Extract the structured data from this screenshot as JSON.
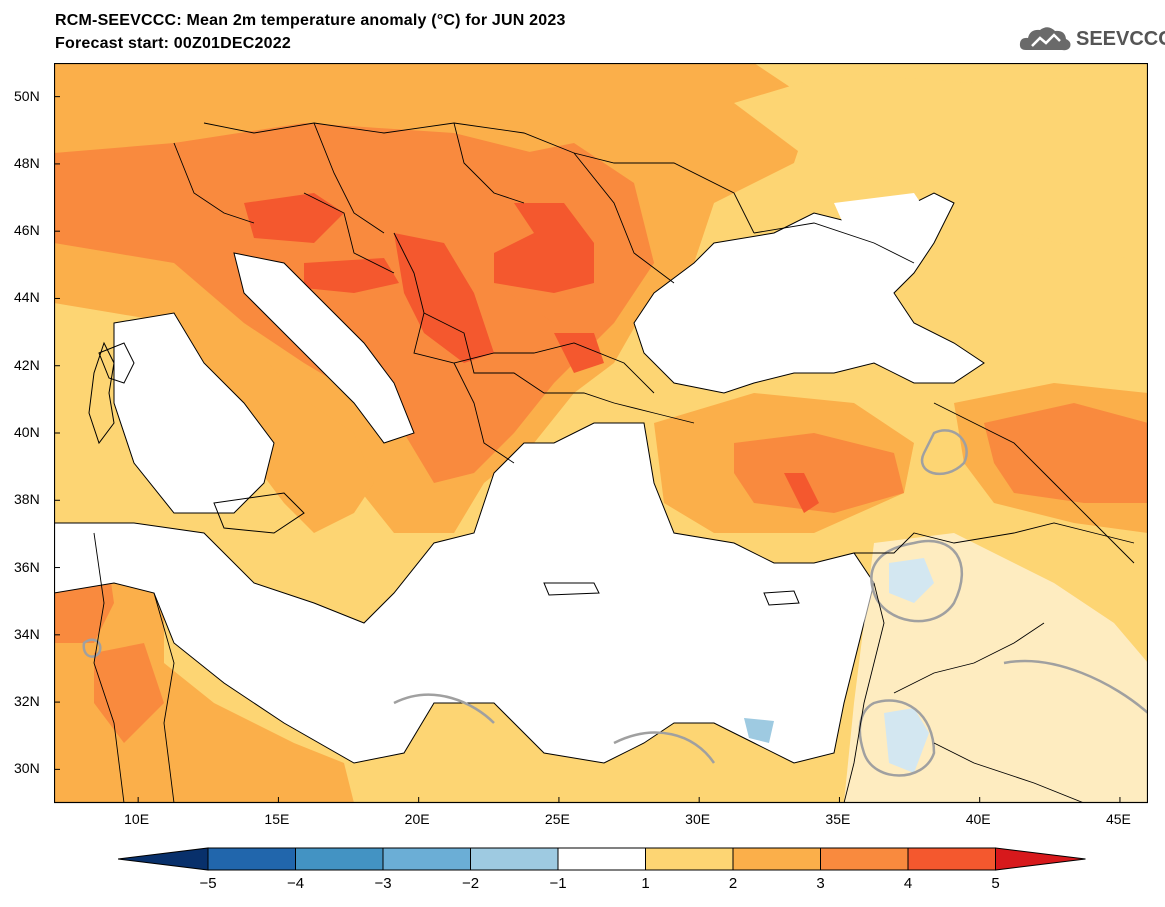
{
  "header": {
    "title": "RCM-SEEVCCC: Mean 2m temperature anomaly (°C) for JUN 2023",
    "subtitle": "Forecast start: 00Z01DEC2022",
    "logo_text": "SEEVCCC"
  },
  "map": {
    "lon_range": [
      7,
      46
    ],
    "lat_range": [
      29,
      51
    ],
    "lat_ticks": [
      "30N",
      "32N",
      "34N",
      "36N",
      "38N",
      "40N",
      "42N",
      "44N",
      "46N",
      "48N",
      "50N"
    ],
    "lon_ticks": [
      "10E",
      "15E",
      "20E",
      "25E",
      "30E",
      "35E",
      "40E",
      "45E"
    ],
    "sea_color": "#ffffff",
    "land_color_dominant": "#fdd573"
  },
  "colorbar": {
    "labels": [
      "−5",
      "−4",
      "−3",
      "−2",
      "−1",
      "1",
      "2",
      "3",
      "4",
      "5"
    ],
    "colors": [
      "#08306b",
      "#2166ac",
      "#4393c3",
      "#6baed6",
      "#9ecae1",
      "#ffffff",
      "#fdd573",
      "#fbaf4a",
      "#f98a3e",
      "#f4582e",
      "#d7191c"
    ]
  }
}
